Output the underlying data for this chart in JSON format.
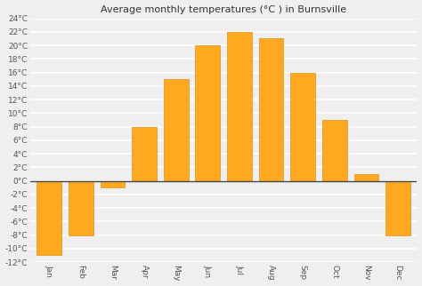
{
  "title": "Average monthly temperatures (°C ) in Burnsville",
  "months": [
    "Jan",
    "Feb",
    "Mar",
    "Apr",
    "May",
    "Jun",
    "Jul",
    "Aug",
    "Sep",
    "Oct",
    "Nov",
    "Dec"
  ],
  "values": [
    -11,
    -8,
    -1,
    8,
    15,
    20,
    22,
    21,
    16,
    9,
    1,
    -8
  ],
  "ylim": [
    -12,
    24
  ],
  "yticks": [
    -12,
    -10,
    -8,
    -6,
    -4,
    -2,
    0,
    2,
    4,
    6,
    8,
    10,
    12,
    14,
    16,
    18,
    20,
    22,
    24
  ],
  "ytick_labels": [
    "-12°C",
    "-10°C",
    "-8°C",
    "-6°C",
    "-4°C",
    "-2°C",
    "0°C",
    "2°C",
    "4°C",
    "6°C",
    "8°C",
    "10°C",
    "12°C",
    "14°C",
    "16°C",
    "18°C",
    "20°C",
    "22°C",
    "24°C"
  ],
  "background_color": "#f0eeee",
  "plot_bg_color": "#f0eeee",
  "grid_color": "#ffffff",
  "bar_color": "#FFA820",
  "bar_edge_color": "#cc8800",
  "zero_line_color": "#444444",
  "title_fontsize": 8,
  "tick_fontsize": 6.5,
  "bar_width": 0.78,
  "xlabel_rotation": 270,
  "figsize": [
    4.74,
    3.22
  ],
  "dpi": 100
}
